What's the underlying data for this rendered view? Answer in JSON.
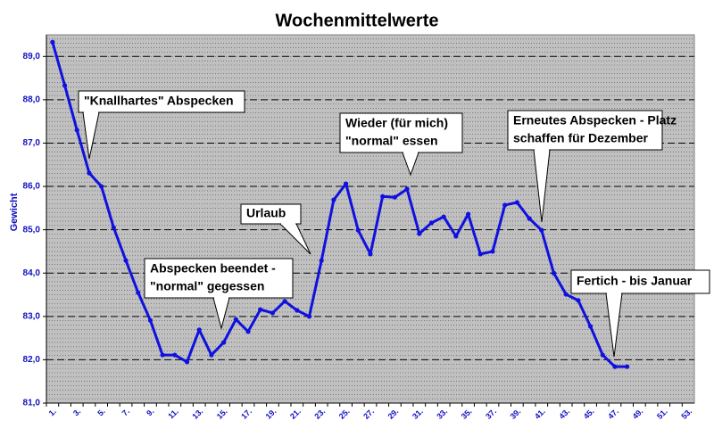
{
  "chart_data": {
    "type": "line",
    "title": "Wochenmittelwerte",
    "y_label": "Gewicht",
    "categories": [
      "1.",
      null,
      "3.",
      null,
      "5.",
      null,
      "7.",
      null,
      "9.",
      null,
      "11.",
      null,
      "13.",
      null,
      "15.",
      null,
      "17.",
      null,
      "19.",
      null,
      "21.",
      null,
      "23.",
      null,
      "25.",
      null,
      "27.",
      null,
      "29.",
      null,
      "31.",
      null,
      "33.",
      null,
      "35.",
      null,
      "37.",
      null,
      "39.",
      null,
      "41.",
      null,
      "43.",
      null,
      "45.",
      null,
      "47.",
      null,
      "49.",
      null,
      "51.",
      null,
      "53."
    ],
    "series": [
      {
        "name": "Gewicht",
        "color": "#1010e0",
        "values": [
          89.33,
          88.33,
          87.3,
          86.31,
          86.0,
          85.05,
          84.29,
          83.55,
          82.91,
          82.11,
          82.11,
          81.95,
          82.69,
          82.11,
          82.4,
          82.93,
          82.65,
          83.16,
          83.08,
          83.35,
          83.14,
          83.0,
          84.29,
          85.69,
          86.06,
          84.99,
          84.44,
          85.77,
          85.75,
          85.94,
          84.91,
          85.16,
          85.3,
          84.85,
          85.36,
          84.44,
          84.5,
          85.57,
          85.63,
          85.26,
          84.99,
          84.0,
          83.51,
          83.37,
          82.77,
          82.11,
          81.84,
          81.84,
          null,
          null,
          null,
          null,
          null
        ]
      }
    ],
    "ylim": [
      81,
      89.5
    ],
    "yticks": [
      {
        "value": 81,
        "label": "81,0"
      },
      {
        "value": 82,
        "label": "82,0"
      },
      {
        "value": 83,
        "label": "83,0"
      },
      {
        "value": 84,
        "label": "84,0"
      },
      {
        "value": 85,
        "label": "85,0"
      },
      {
        "value": 86,
        "label": "86,0"
      },
      {
        "value": 87,
        "label": "87,0"
      },
      {
        "value": 88,
        "label": "88,0"
      },
      {
        "value": 89,
        "label": "89,0"
      }
    ],
    "grid": true,
    "minor_grid_step": 0.1,
    "plot_background": "#c0c0c0",
    "annotations": [
      {
        "lines": [
          "\"Knallhartes\" Abspecken"
        ],
        "point": 4
      },
      {
        "lines": [
          "Abspecken beendet -",
          "\"normal\" gegessen"
        ],
        "point": 15
      },
      {
        "lines": [
          "Urlaub"
        ],
        "point": 23
      },
      {
        "lines": [
          "Wieder (für mich)",
          "\"normal\" essen"
        ],
        "point": 30
      },
      {
        "lines": [
          "Erneutes Abspecken - Platz",
          "schaffen für Dezember"
        ],
        "point": 41
      },
      {
        "lines": [
          "Fertich - bis Januar"
        ],
        "point": 47
      }
    ]
  }
}
